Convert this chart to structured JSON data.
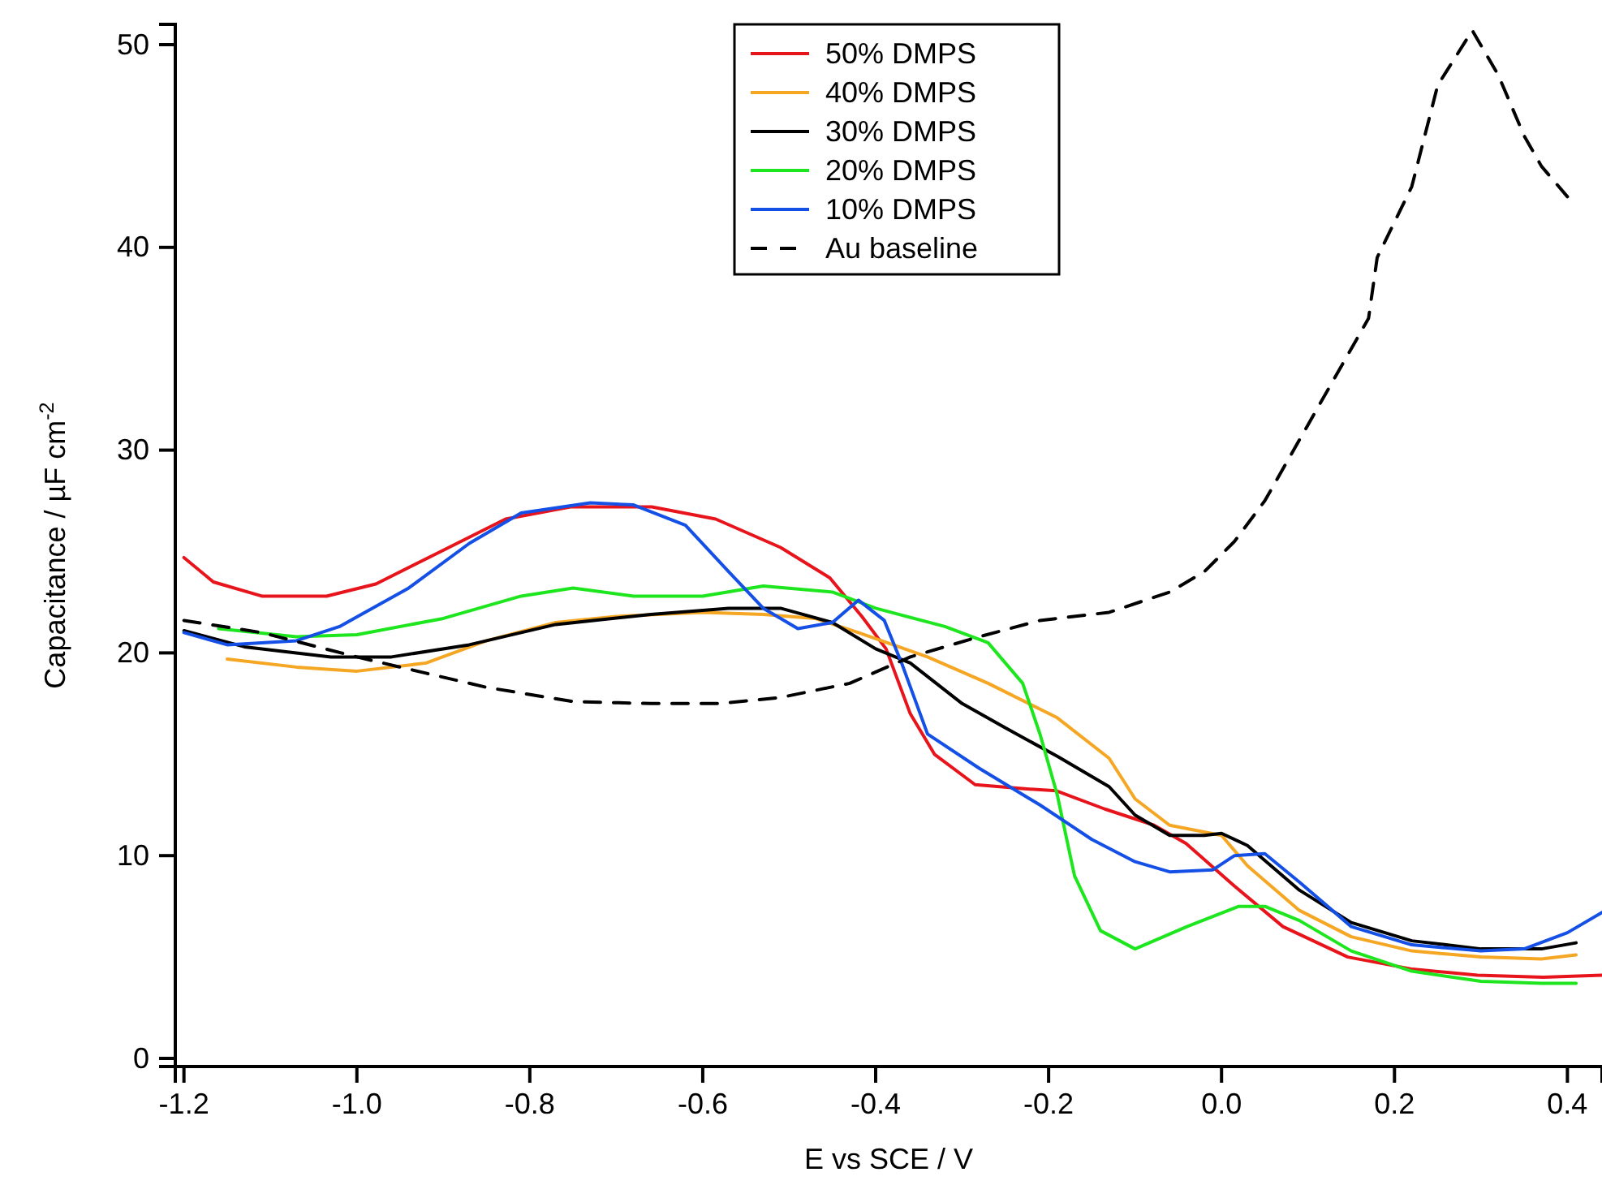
{
  "chart_data": {
    "type": "line",
    "xlabel": "E vs SCE / V",
    "ylabel": "Capacitance / µF cm$^{-2}$",
    "xlim": [
      -1.21,
      0.44
    ],
    "ylim": [
      -0.4,
      51
    ],
    "xticks": [
      -1.2,
      {
        "value": -1,
        "label": "-1.0"
      },
      -0.8,
      -0.6,
      -0.4,
      -0.2,
      {
        "value": 0,
        "label": "0.0"
      },
      0.2,
      0.4
    ],
    "yticks": [
      0,
      10,
      20,
      30,
      40,
      50
    ],
    "grid": false,
    "legend": "top",
    "series": [
      {
        "name": "50% DMPS",
        "color": "#e8141c",
        "line_style": "solid",
        "x": [
          -1.2,
          -1.166,
          -1.11,
          -1.035,
          -0.978,
          -0.903,
          -0.828,
          -0.753,
          -0.659,
          -0.585,
          -0.51,
          -0.453,
          -0.416,
          -0.388,
          -0.36,
          -0.332,
          -0.285,
          -0.228,
          -0.191,
          -0.135,
          -0.078,
          -0.041,
          0.015,
          0.071,
          0.146,
          0.221,
          0.296,
          0.372,
          0.44
        ],
        "values": [
          24.7,
          23.5,
          22.8,
          22.8,
          23.4,
          25,
          26.6,
          27.2,
          27.2,
          26.6,
          25.2,
          23.7,
          21.8,
          20.2,
          17,
          15,
          13.5,
          13.3,
          13.2,
          12.3,
          11.5,
          10.6,
          8.5,
          6.5,
          5,
          4.4,
          4.1,
          4,
          4.1
        ]
      },
      {
        "name": "40% DMPS",
        "color": "#f5a623",
        "line_style": "solid",
        "x": [
          -1.15,
          -1.07,
          -1.0,
          -0.92,
          -0.85,
          -0.77,
          -0.7,
          -0.6,
          -0.53,
          -0.47,
          -0.42,
          -0.34,
          -0.27,
          -0.19,
          -0.13,
          -0.1,
          -0.06,
          0.0,
          0.03,
          0.09,
          0.15,
          0.22,
          0.3,
          0.37,
          0.41
        ],
        "values": [
          19.7,
          19.3,
          19.1,
          19.5,
          20.6,
          21.5,
          21.8,
          22,
          21.9,
          21.7,
          21,
          19.8,
          18.5,
          16.8,
          14.8,
          12.8,
          11.5,
          11,
          9.5,
          7.3,
          6,
          5.3,
          5,
          4.9,
          5.1
        ]
      },
      {
        "name": "30% DMPS",
        "color": "#000000",
        "line_style": "solid",
        "x": [
          -1.2,
          -1.13,
          -1.03,
          -0.96,
          -0.87,
          -0.77,
          -0.66,
          -0.57,
          -0.51,
          -0.45,
          -0.4,
          -0.36,
          -0.3,
          -0.25,
          -0.19,
          -0.13,
          -0.1,
          -0.06,
          -0.02,
          0.0,
          0.03,
          0.09,
          0.15,
          0.22,
          0.3,
          0.37,
          0.41
        ],
        "values": [
          21.1,
          20.3,
          19.8,
          19.8,
          20.4,
          21.4,
          21.9,
          22.2,
          22.2,
          21.5,
          20.2,
          19.5,
          17.5,
          16.3,
          14.9,
          13.4,
          12,
          11,
          11,
          11.1,
          10.5,
          8.3,
          6.7,
          5.8,
          5.4,
          5.4,
          5.7
        ]
      },
      {
        "name": "20% DMPS",
        "color": "#1ee61e",
        "line_style": "solid",
        "x": [
          -1.16,
          -1.07,
          -1.0,
          -0.9,
          -0.81,
          -0.75,
          -0.68,
          -0.6,
          -0.53,
          -0.45,
          -0.4,
          -0.32,
          -0.27,
          -0.23,
          -0.21,
          -0.19,
          -0.17,
          -0.14,
          -0.1,
          -0.04,
          0.02,
          0.05,
          0.09,
          0.15,
          0.22,
          0.3,
          0.37,
          0.41
        ],
        "values": [
          21.2,
          20.8,
          20.9,
          21.7,
          22.8,
          23.2,
          22.8,
          22.8,
          23.3,
          23,
          22.2,
          21.3,
          20.5,
          18.5,
          16,
          13,
          9,
          6.3,
          5.4,
          6.5,
          7.5,
          7.5,
          6.8,
          5.3,
          4.3,
          3.8,
          3.7,
          3.7
        ]
      },
      {
        "name": "10% DMPS",
        "color": "#1450e6",
        "line_style": "solid",
        "x": [
          -1.2,
          -1.15,
          -1.07,
          -1.02,
          -0.94,
          -0.87,
          -0.81,
          -0.73,
          -0.68,
          -0.62,
          -0.57,
          -0.53,
          -0.49,
          -0.45,
          -0.42,
          -0.39,
          -0.37,
          -0.34,
          -0.28,
          -0.21,
          -0.15,
          -0.1,
          -0.06,
          -0.01,
          0.015,
          0.05,
          0.09,
          0.15,
          0.22,
          0.3,
          0.35,
          0.4,
          0.44
        ],
        "values": [
          21,
          20.4,
          20.6,
          21.3,
          23.2,
          25.4,
          26.9,
          27.4,
          27.3,
          26.3,
          24,
          22.2,
          21.2,
          21.5,
          22.6,
          21.6,
          19.5,
          16,
          14.3,
          12.5,
          10.8,
          9.7,
          9.2,
          9.3,
          10,
          10.1,
          8.7,
          6.5,
          5.6,
          5.3,
          5.4,
          6.2,
          7.2
        ]
      },
      {
        "name": "Au baseline",
        "color": "#000000",
        "line_style": "dashed",
        "x": [
          -1.2,
          -1.11,
          -1.0,
          -0.92,
          -0.85,
          -0.75,
          -0.66,
          -0.58,
          -0.51,
          -0.43,
          -0.36,
          -0.28,
          -0.21,
          -0.13,
          -0.06,
          -0.02,
          0.015,
          0.05,
          0.09,
          0.13,
          0.17,
          0.18,
          0.22,
          0.25,
          0.29,
          0.32,
          0.35,
          0.37,
          0.4
        ],
        "values": [
          21.6,
          21,
          19.8,
          19,
          18.3,
          17.6,
          17.5,
          17.5,
          17.8,
          18.5,
          19.8,
          20.8,
          21.6,
          22,
          23,
          24,
          25.5,
          27.5,
          30.5,
          33.5,
          36.5,
          39.5,
          43,
          48,
          50.7,
          48.5,
          45.5,
          44,
          42.5
        ]
      }
    ]
  }
}
